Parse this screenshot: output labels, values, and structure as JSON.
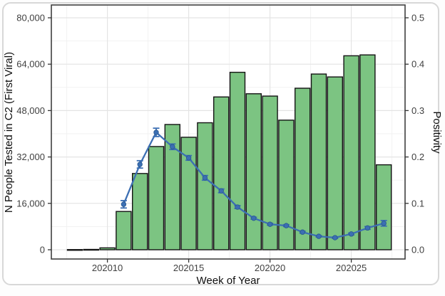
{
  "figure": {
    "background": "#ffffff",
    "card_border_color": "#d8d8d8"
  },
  "chart_data": {
    "type": "bar",
    "subtype": "dual-axis bar + line with error bars",
    "title": "",
    "xlabel": "Week of Year",
    "ylabel_left": "N People Tested in C2 (First Viral)",
    "ylabel_right": "Positivity",
    "x_ticks": [
      202010,
      202015,
      202020,
      202025
    ],
    "x_tick_labels": [
      "202010",
      "202015",
      "202020",
      "202025"
    ],
    "y_left_tick_values": [
      0,
      16000,
      32000,
      48000,
      64000,
      80000
    ],
    "y_left_tick_labels": [
      "0",
      "16,000",
      "32,000",
      "48,000",
      "64,000",
      "80,000"
    ],
    "y_right_tick_values": [
      0.0,
      0.1,
      0.2,
      0.3,
      0.4,
      0.5
    ],
    "y_right_tick_labels": [
      "0.0",
      "0.1",
      "0.2",
      "0.3",
      "0.4",
      "0.5"
    ],
    "y_left_axis_max": 80000,
    "y_right_axis_max": 0.5,
    "grid": "major and minor, light gray, on",
    "legend": "none",
    "categories": [
      202008,
      202009,
      202010,
      202011,
      202012,
      202013,
      202014,
      202015,
      202016,
      202017,
      202018,
      202019,
      202020,
      202021,
      202022,
      202023,
      202024,
      202025,
      202026,
      202027
    ],
    "series": [
      {
        "name": "N People Tested",
        "axis": "left",
        "style": "bar",
        "values": [
          60,
          120,
          650,
          13200,
          26300,
          35600,
          43200,
          38800,
          43800,
          52700,
          61200,
          53800,
          53000,
          44700,
          55700,
          60600,
          59600,
          66900,
          67200,
          29300
        ]
      },
      {
        "name": "Positivity",
        "axis": "right",
        "style": "line+points+errorbars",
        "x": [
          202011,
          202012,
          202013,
          202014,
          202015,
          202016,
          202017,
          202018,
          202019,
          202020,
          202021,
          202022,
          202023,
          202024,
          202025,
          202026,
          202027
        ],
        "values": [
          0.098,
          0.184,
          0.253,
          0.222,
          0.198,
          0.155,
          0.127,
          0.092,
          0.068,
          0.055,
          0.052,
          0.038,
          0.029,
          0.026,
          0.034,
          0.047,
          0.057
        ],
        "errors": [
          0.008,
          0.008,
          0.009,
          0.006,
          0.005,
          0.005,
          0.004,
          0.003,
          0.002,
          0.002,
          0.002,
          0.002,
          0.0015,
          0.0015,
          0.002,
          0.003,
          0.006
        ]
      }
    ],
    "colors": {
      "bar_fill": "#7cc482",
      "bar_stroke": "#141414",
      "line": "#3c6fb3",
      "point_stroke": "#27578f",
      "grid_major": "#e4e4e4",
      "grid_minor": "#f1f1f1",
      "panel_border": "#3f3f3f",
      "tick_mark": "#333333",
      "tick_label": "#404040",
      "axis_title": "#0d0d0d"
    }
  }
}
